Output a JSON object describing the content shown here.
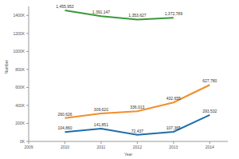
{
  "chart_data": {
    "type": "line",
    "x_label": "Year",
    "y_label": "Number",
    "x": [
      2010,
      2011,
      2012,
      2013,
      2014
    ],
    "series": [
      {
        "color": "#3a9a3a",
        "values": [
          1455953,
          1391147,
          1353627,
          1372789,
          null
        ],
        "value_labels": [
          "1,455,953",
          "1,391,147",
          "1,353,627",
          "1,372,789",
          null
        ]
      },
      {
        "color": "#f28e2b",
        "values": [
          260626,
          309620,
          336013,
          432655,
          627780
        ],
        "value_labels": [
          "260,626",
          "309,620",
          "336,013",
          "432,655",
          "627,780"
        ]
      },
      {
        "color": "#1f6fa8",
        "values": [
          104860,
          141851,
          72437,
          107365,
          293532
        ],
        "value_labels": [
          "104,860",
          "141,851",
          "72,437",
          "107,365",
          "293,532"
        ]
      }
    ],
    "xlim": [
      2009,
      2014.5
    ],
    "xticks": [
      2009,
      2010,
      2011,
      2012,
      2013,
      2014
    ],
    "ylim": [
      0,
      1500000
    ],
    "yticks": [
      {
        "value": 0,
        "label": "0K"
      },
      {
        "value": 200000,
        "label": "200K"
      },
      {
        "value": 400000,
        "label": "400K"
      },
      {
        "value": 600000,
        "label": "600K"
      },
      {
        "value": 800000,
        "label": "800K"
      },
      {
        "value": 1000000,
        "label": "1000K"
      },
      {
        "value": 1200000,
        "label": "1200K"
      },
      {
        "value": 1400000,
        "label": "1400K"
      }
    ],
    "grid": false,
    "data_labels": true
  }
}
